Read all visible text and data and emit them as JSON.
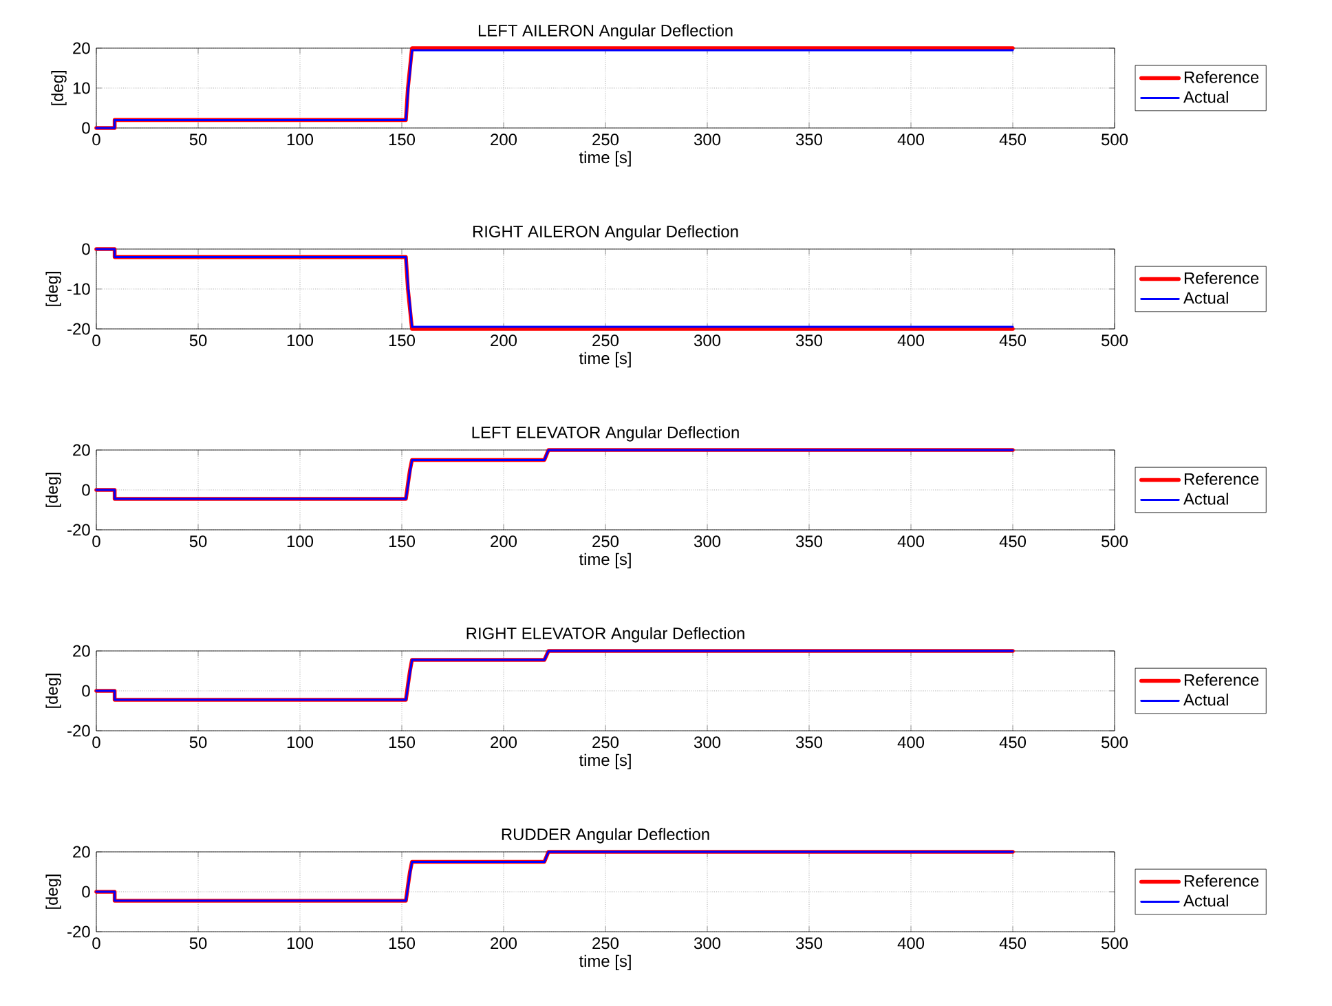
{
  "chart_data": [
    {
      "type": "line",
      "title": "LEFT AILERON Angular Deflection",
      "xlabel": "time [s]",
      "ylabel": "[deg]",
      "xlim": [
        0,
        500
      ],
      "xticks": [
        0,
        50,
        100,
        150,
        200,
        250,
        300,
        350,
        400,
        450,
        500
      ],
      "ylim": [
        0,
        20
      ],
      "yticks": [
        0,
        10,
        20
      ],
      "grid": true,
      "legend": "right",
      "series": [
        {
          "name": "Reference",
          "color": "#ff0000",
          "x": [
            0,
            9,
            9,
            152,
            153,
            154,
            155,
            450
          ],
          "values": [
            0,
            0,
            2,
            2,
            10,
            15,
            20,
            20
          ]
        },
        {
          "name": "Actual",
          "color": "#0000ff",
          "x": [
            0,
            9,
            9,
            152,
            153,
            154,
            155,
            450
          ],
          "values": [
            0,
            0,
            2,
            2,
            9,
            14,
            19.5,
            19.5
          ]
        }
      ]
    },
    {
      "type": "line",
      "title": "RIGHT AILERON Angular Deflection",
      "xlabel": "time [s]",
      "ylabel": "[deg]",
      "xlim": [
        0,
        500
      ],
      "xticks": [
        0,
        50,
        100,
        150,
        200,
        250,
        300,
        350,
        400,
        450,
        500
      ],
      "ylim": [
        -20,
        0
      ],
      "yticks": [
        -20,
        -10,
        0
      ],
      "grid": true,
      "legend": "right",
      "series": [
        {
          "name": "Reference",
          "color": "#ff0000",
          "x": [
            0,
            9,
            9,
            152,
            153,
            154,
            155,
            450
          ],
          "values": [
            0,
            0,
            -2,
            -2,
            -10,
            -15,
            -20,
            -20
          ]
        },
        {
          "name": "Actual",
          "color": "#0000ff",
          "x": [
            0,
            9,
            9,
            152,
            153,
            154,
            155,
            450
          ],
          "values": [
            0,
            0,
            -2,
            -2,
            -9,
            -14,
            -19.5,
            -19.5
          ]
        }
      ]
    },
    {
      "type": "line",
      "title": "LEFT ELEVATOR Angular Deflection",
      "xlabel": "time [s]",
      "ylabel": "[deg]",
      "xlim": [
        0,
        500
      ],
      "xticks": [
        0,
        50,
        100,
        150,
        200,
        250,
        300,
        350,
        400,
        450,
        500
      ],
      "ylim": [
        -20,
        20
      ],
      "yticks": [
        -20,
        0,
        20
      ],
      "grid": true,
      "legend": "right",
      "series": [
        {
          "name": "Reference",
          "color": "#ff0000",
          "x": [
            0,
            9,
            9,
            152,
            153,
            154,
            155,
            220,
            222,
            450
          ],
          "values": [
            0,
            0,
            -4.5,
            -4.5,
            3,
            10,
            15,
            15,
            20,
            20
          ]
        },
        {
          "name": "Actual",
          "color": "#0000ff",
          "x": [
            0,
            9,
            9,
            152,
            153,
            154,
            155,
            220,
            222,
            450
          ],
          "values": [
            0,
            0,
            -4.5,
            -4.5,
            2,
            9,
            15,
            15,
            20,
            20
          ]
        }
      ]
    },
    {
      "type": "line",
      "title": "RIGHT ELEVATOR Angular Deflection",
      "xlabel": "time [s]",
      "ylabel": "[deg]",
      "xlim": [
        0,
        500
      ],
      "xticks": [
        0,
        50,
        100,
        150,
        200,
        250,
        300,
        350,
        400,
        450,
        500
      ],
      "ylim": [
        -20,
        20
      ],
      "yticks": [
        -20,
        0,
        20
      ],
      "grid": true,
      "legend": "right",
      "series": [
        {
          "name": "Reference",
          "color": "#ff0000",
          "x": [
            0,
            9,
            9,
            152,
            153,
            154,
            155,
            220,
            222,
            450
          ],
          "values": [
            0,
            0,
            -4.5,
            -4.5,
            3,
            10,
            15.5,
            15.5,
            20,
            20
          ]
        },
        {
          "name": "Actual",
          "color": "#0000ff",
          "x": [
            0,
            9,
            9,
            152,
            153,
            154,
            155,
            220,
            222,
            450
          ],
          "values": [
            0,
            0,
            -4.5,
            -4.5,
            2,
            9,
            15.5,
            15.5,
            20,
            20
          ]
        }
      ]
    },
    {
      "type": "line",
      "title": "RUDDER Angular Deflection",
      "xlabel": "time [s]",
      "ylabel": "[deg]",
      "xlim": [
        0,
        500
      ],
      "xticks": [
        0,
        50,
        100,
        150,
        200,
        250,
        300,
        350,
        400,
        450,
        500
      ],
      "ylim": [
        -20,
        20
      ],
      "yticks": [
        -20,
        0,
        20
      ],
      "grid": true,
      "legend": "right",
      "series": [
        {
          "name": "Reference",
          "color": "#ff0000",
          "x": [
            0,
            9,
            9,
            152,
            153,
            154,
            155,
            220,
            222,
            450
          ],
          "values": [
            0,
            0,
            -4.5,
            -4.5,
            3,
            10,
            15,
            15,
            20,
            20
          ]
        },
        {
          "name": "Actual",
          "color": "#0000ff",
          "x": [
            0,
            9,
            9,
            152,
            153,
            154,
            155,
            220,
            222,
            450
          ],
          "values": [
            0,
            0,
            -4.5,
            -4.5,
            2,
            9,
            15,
            15,
            20,
            20
          ]
        }
      ]
    }
  ]
}
